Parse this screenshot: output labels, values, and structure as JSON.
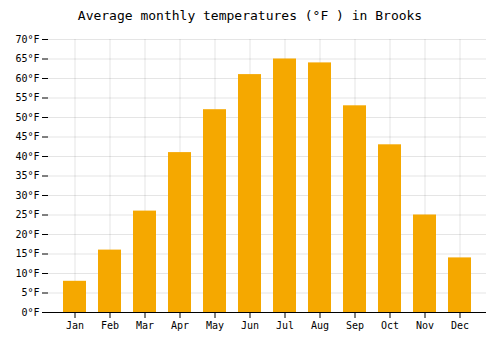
{
  "chart_data": {
    "type": "bar",
    "title": "Average monthly temperatures (°F ) in Brooks",
    "categories": [
      "Jan",
      "Feb",
      "Mar",
      "Apr",
      "May",
      "Jun",
      "Jul",
      "Aug",
      "Sep",
      "Oct",
      "Nov",
      "Dec"
    ],
    "values": [
      8,
      16,
      26,
      41,
      52,
      61,
      65,
      64,
      53,
      43,
      25,
      14
    ],
    "color": "#F5A800",
    "ylim": [
      0,
      70
    ],
    "yticks": [
      {
        "value": 0,
        "label": "0°F"
      },
      {
        "value": 5,
        "label": "5°F"
      },
      {
        "value": 10,
        "label": "10°F"
      },
      {
        "value": 15,
        "label": "15°F"
      },
      {
        "value": 20,
        "label": "20°F"
      },
      {
        "value": 25,
        "label": "25°F"
      },
      {
        "value": 30,
        "label": "30°F"
      },
      {
        "value": 35,
        "label": "35°F"
      },
      {
        "value": 40,
        "label": "40°F"
      },
      {
        "value": 45,
        "label": "45°F"
      },
      {
        "value": 50,
        "label": "50°F"
      },
      {
        "value": 55,
        "label": "55°F"
      },
      {
        "value": 60,
        "label": "60°F"
      },
      {
        "value": 65,
        "label": "65°F"
      },
      {
        "value": 70,
        "label": "70°F"
      }
    ],
    "grid": true
  }
}
